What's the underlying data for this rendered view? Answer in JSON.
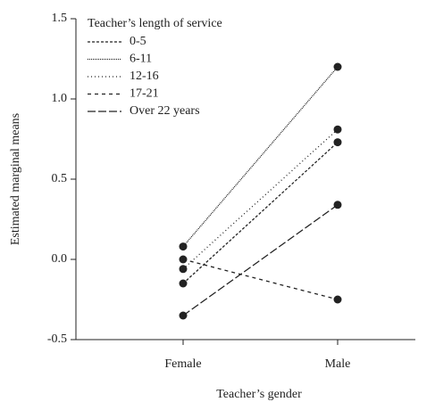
{
  "chart_data": {
    "type": "line",
    "x_label": "Teacher’s gender",
    "y_label": "Estimated marginal means",
    "legend_title": "Teacher’s length of service",
    "legend_position": "upper left",
    "categories": [
      "Female",
      "Male"
    ],
    "series": [
      {
        "name": "0-5",
        "color": "#222222",
        "dash": "3,2",
        "values": [
          -0.15,
          0.73
        ]
      },
      {
        "name": "6-11",
        "color": "#222222",
        "dash": "1,1",
        "values": [
          0.08,
          1.2
        ]
      },
      {
        "name": "12-16",
        "color": "#222222",
        "dash": "1,3",
        "values": [
          -0.06,
          0.81
        ]
      },
      {
        "name": "17-21",
        "color": "#222222",
        "dash": "4,4",
        "values": [
          0.0,
          -0.25
        ]
      },
      {
        "name": "Over 22 years",
        "color": "#222222",
        "dash": "9,3",
        "values": [
          -0.35,
          0.34
        ]
      }
    ],
    "ylim": [
      -0.5,
      1.5
    ],
    "yticks": [
      -0.5,
      {
        "value": 0,
        "label": "0.0"
      },
      0.5,
      {
        "value": 1,
        "label": "1.0"
      },
      1.5
    ]
  }
}
